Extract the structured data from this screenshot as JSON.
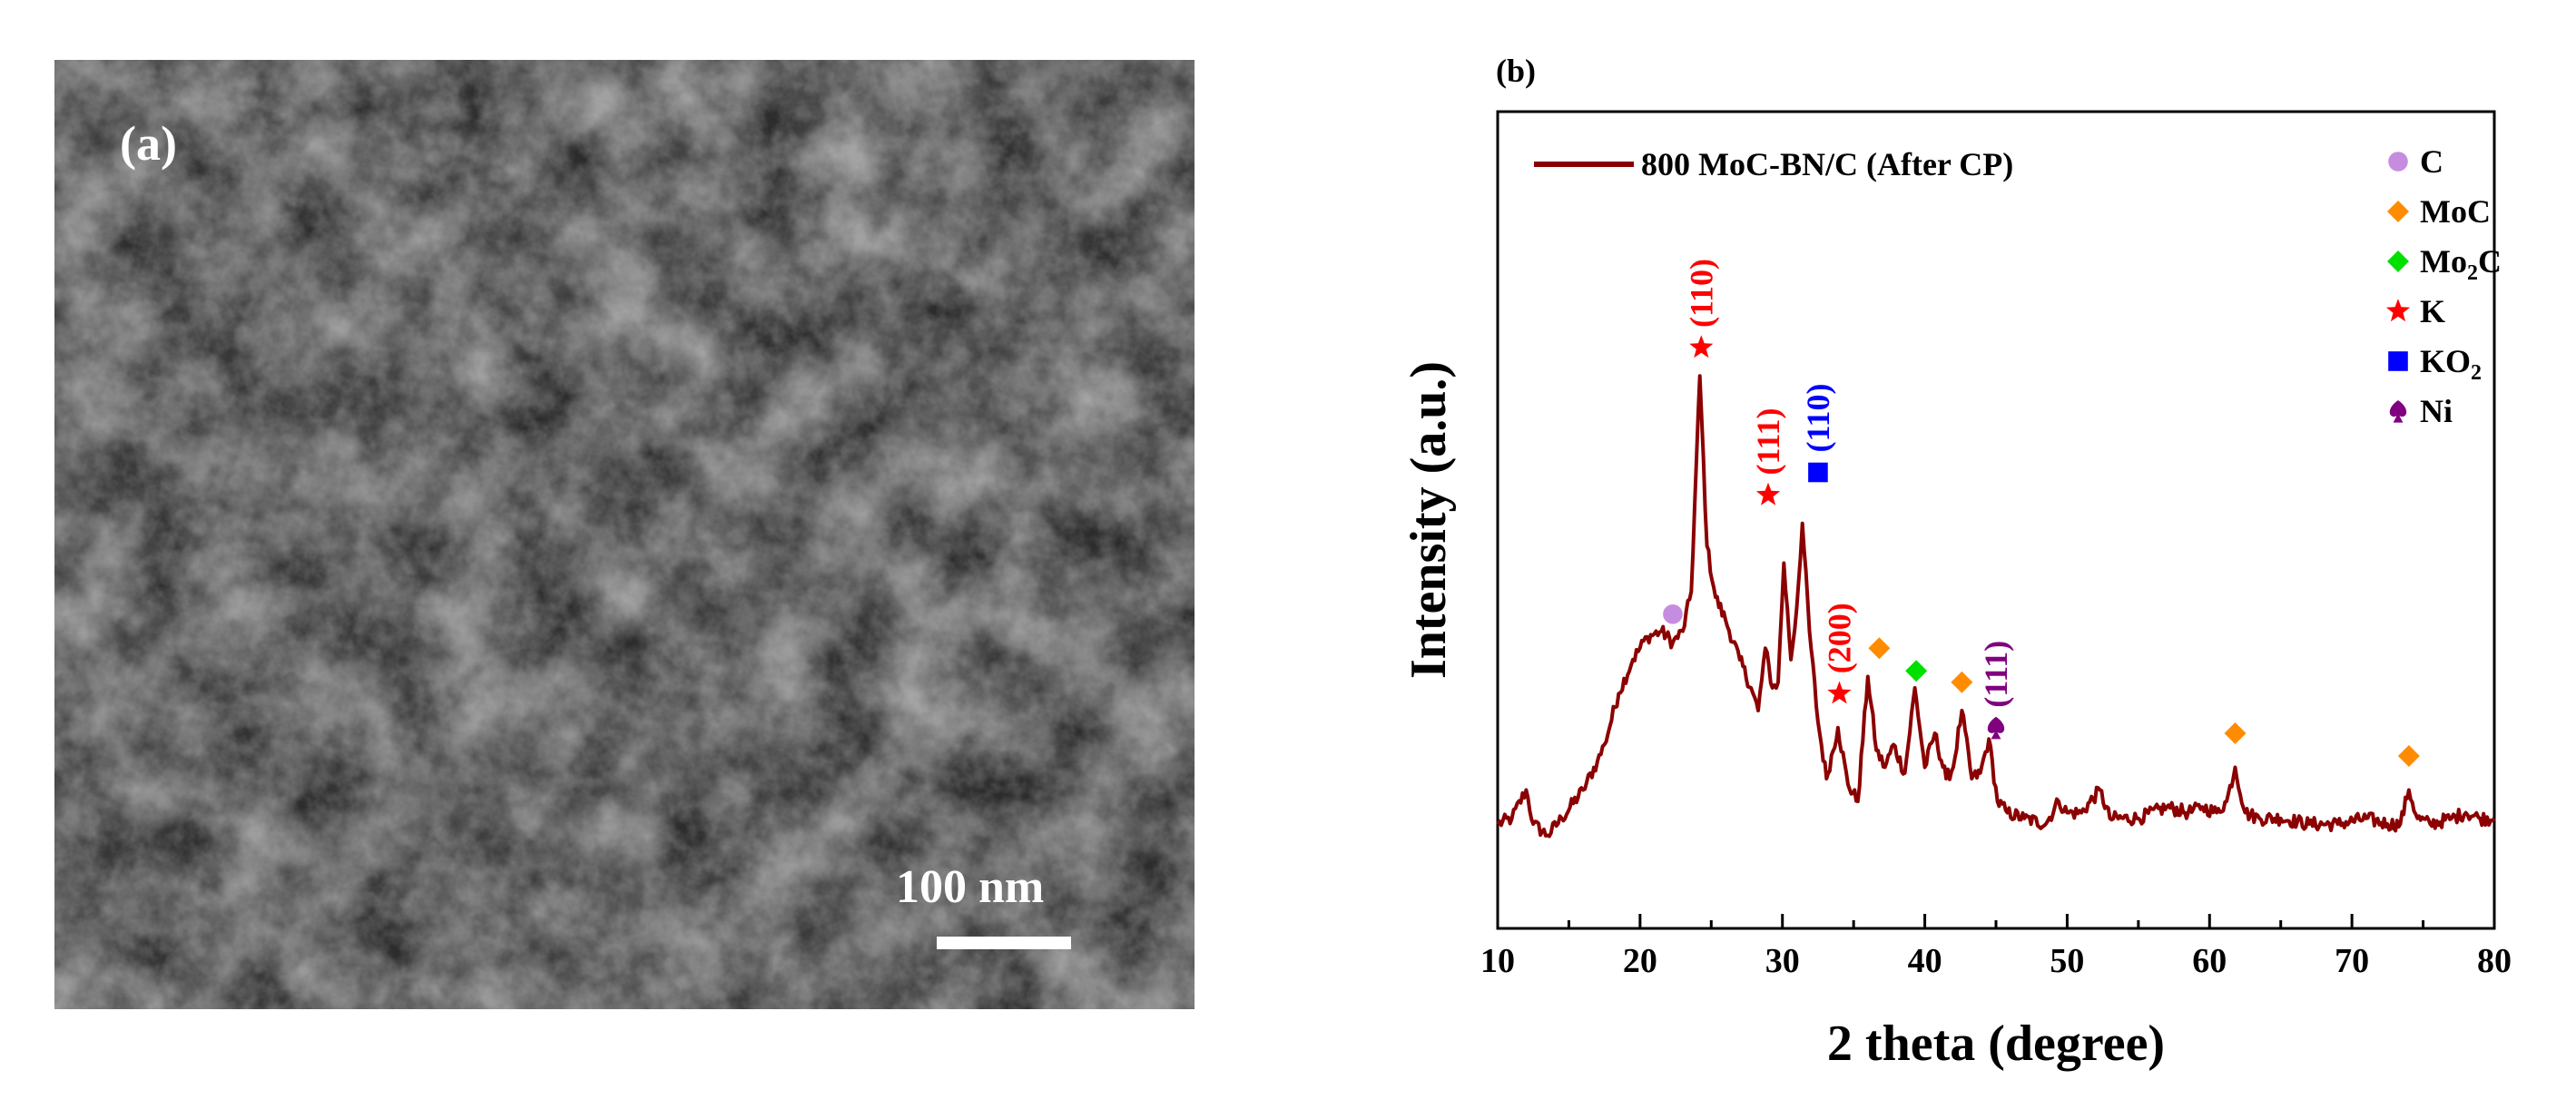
{
  "panel_a": {
    "label": "(a)",
    "scale_bar_text": "100 nm"
  },
  "panel_b": {
    "label": "(b)"
  },
  "chart_data": {
    "type": "line",
    "title": "",
    "xlabel": "2 theta (degree)",
    "ylabel": "Intensity (a.u.)",
    "xlim": [
      10,
      80
    ],
    "ylim": [
      0,
      100
    ],
    "xticks": [
      10,
      20,
      30,
      40,
      50,
      60,
      70,
      80
    ],
    "yticks_shown": false,
    "grid": false,
    "series": [
      {
        "name": "800 MoC-BN/C (After CP)",
        "color": "#8b0000",
        "x": [
          10.0,
          11.0,
          12.0,
          12.5,
          13.5,
          14.5,
          16.0,
          17.0,
          17.5,
          18.5,
          19.5,
          20.5,
          21.5,
          22.3,
          23.0,
          23.6,
          24.2,
          24.7,
          25.3,
          26.0,
          27.0,
          27.8,
          28.3,
          28.8,
          29.3,
          29.7,
          30.1,
          30.6,
          31.0,
          31.4,
          31.9,
          32.5,
          33.1,
          33.9,
          34.6,
          35.3,
          36.0,
          36.6,
          37.2,
          37.8,
          38.6,
          39.3,
          40.0,
          40.7,
          41.5,
          42.0,
          42.6,
          43.3,
          43.9,
          44.5,
          45.1,
          45.8,
          47.0,
          48.5,
          49.4,
          50.0,
          51.0,
          52.3,
          53.0,
          55.0,
          57.0,
          58.5,
          59.5,
          60.5,
          61.2,
          61.8,
          62.5,
          63.5,
          65.0,
          67.0,
          69.0,
          71.0,
          72.5,
          73.4,
          74.0,
          74.6,
          75.5,
          77.0,
          78.0,
          79.0,
          80.0
        ],
        "y": [
          4,
          5,
          10,
          4,
          2,
          5,
          10,
          15,
          18,
          27,
          33,
          37,
          38,
          36,
          38,
          45,
          83,
          53,
          44,
          40,
          33,
          28,
          24,
          35,
          28,
          29,
          50,
          33,
          42,
          57,
          38,
          22,
          12,
          21,
          11,
          8,
          30,
          17,
          14,
          18,
          13,
          28,
          14,
          20,
          12,
          14,
          24,
          12,
          13,
          19,
          8,
          6,
          5,
          4,
          8,
          6,
          6,
          10,
          5,
          5,
          7,
          6,
          7,
          6,
          8,
          14,
          6,
          5,
          5,
          4,
          4,
          5,
          4,
          4,
          10,
          5,
          4,
          5,
          6,
          5,
          5
        ]
      }
    ],
    "legend": {
      "position": "top-left",
      "entries": [
        "800 MoC-BN/C (After CP)"
      ]
    },
    "marker_legend": {
      "position": "top-right",
      "entries": [
        {
          "symbol": "circle",
          "color": "#c68ce0",
          "label": "C",
          "sub": ""
        },
        {
          "symbol": "diamond",
          "color": "#ff8c00",
          "label": "MoC",
          "sub": ""
        },
        {
          "symbol": "diamond",
          "color": "#00e000",
          "label": "Mo",
          "sub": "2",
          "label_after": "C"
        },
        {
          "symbol": "star",
          "color": "#ff0000",
          "label": "K",
          "sub": ""
        },
        {
          "symbol": "square",
          "color": "#0000ff",
          "label": "KO",
          "sub": "2"
        },
        {
          "symbol": "spade",
          "color": "#800080",
          "label": "Ni",
          "sub": ""
        }
      ]
    },
    "peak_markers": [
      {
        "symbol": "circle",
        "color": "#c68ce0",
        "x": 22.3,
        "y": 41,
        "label": ""
      },
      {
        "symbol": "star",
        "color": "#ff0000",
        "x": 24.3,
        "y": 88,
        "label": "(110)"
      },
      {
        "symbol": "star",
        "color": "#ff0000",
        "x": 29.0,
        "y": 62,
        "label": "(111)"
      },
      {
        "symbol": "square",
        "color": "#0000ff",
        "x": 32.5,
        "y": 66,
        "label": "(110)"
      },
      {
        "symbol": "star",
        "color": "#ff0000",
        "x": 34.0,
        "y": 27,
        "label": "(200)"
      },
      {
        "symbol": "diamond",
        "color": "#ff8c00",
        "x": 36.8,
        "y": 35,
        "label": ""
      },
      {
        "symbol": "diamond",
        "color": "#00e000",
        "x": 39.4,
        "y": 31,
        "label": ""
      },
      {
        "symbol": "diamond",
        "color": "#ff8c00",
        "x": 42.6,
        "y": 29,
        "label": ""
      },
      {
        "symbol": "spade",
        "color": "#800080",
        "x": 45.0,
        "y": 21,
        "label": "(111)"
      },
      {
        "symbol": "diamond",
        "color": "#ff8c00",
        "x": 61.8,
        "y": 20,
        "label": ""
      },
      {
        "symbol": "diamond",
        "color": "#ff8c00",
        "x": 74.0,
        "y": 16,
        "label": ""
      }
    ]
  }
}
